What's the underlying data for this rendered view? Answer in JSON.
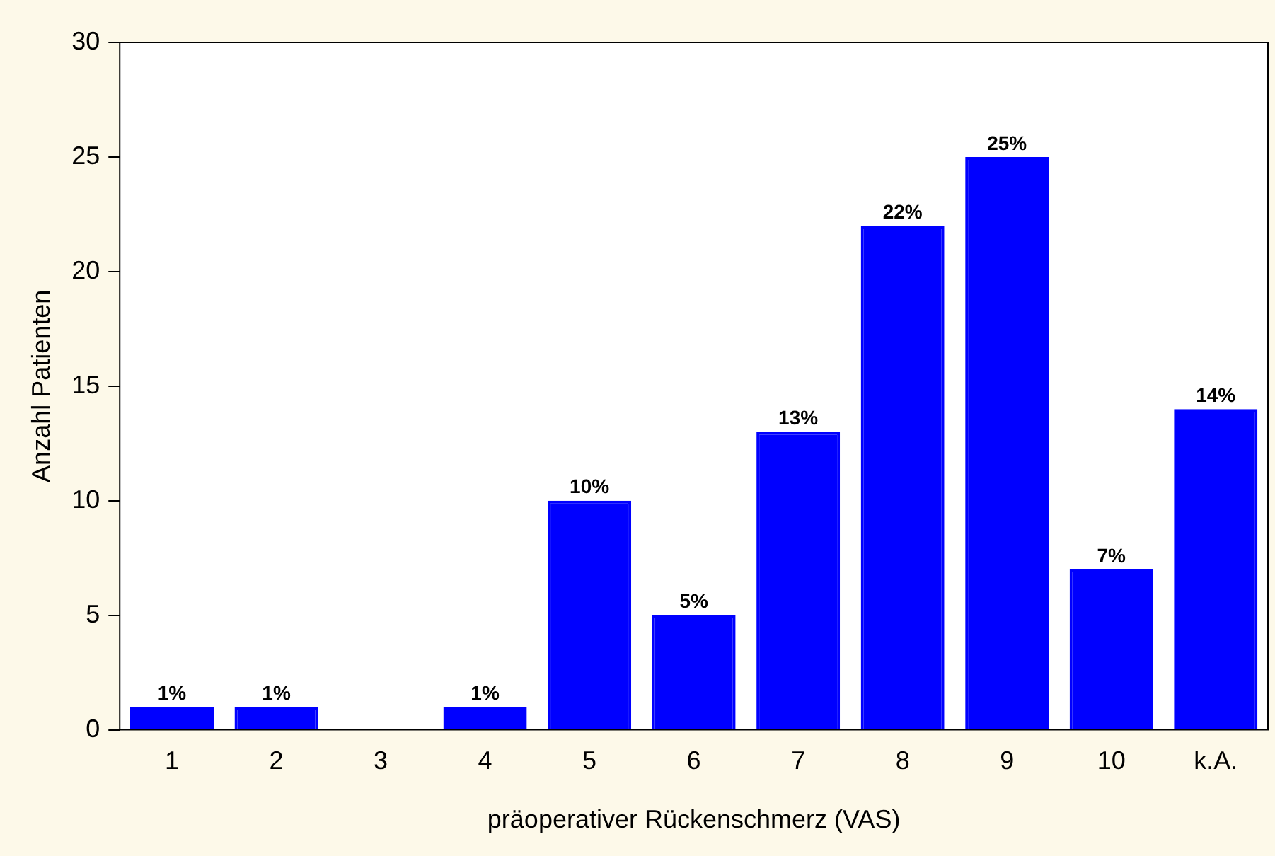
{
  "chart_data": {
    "type": "bar",
    "xlabel": "präoperativer Rückenschmerz (VAS)",
    "ylabel": "Anzahl Patienten",
    "categories": [
      "1",
      "2",
      "3",
      "4",
      "5",
      "6",
      "7",
      "8",
      "9",
      "10",
      "k.A."
    ],
    "values": [
      1,
      1,
      0,
      1,
      10,
      5,
      13,
      22,
      25,
      7,
      14
    ],
    "value_labels": [
      "1%",
      "1%",
      null,
      "1%",
      "10%",
      "5%",
      "13%",
      "22%",
      "25%",
      "7%",
      "14%"
    ],
    "color": "#0000ff",
    "ylim": [
      0,
      30
    ],
    "yticks": [
      0,
      5,
      10,
      15,
      20,
      25,
      30
    ],
    "grid": false,
    "legend": false
  }
}
